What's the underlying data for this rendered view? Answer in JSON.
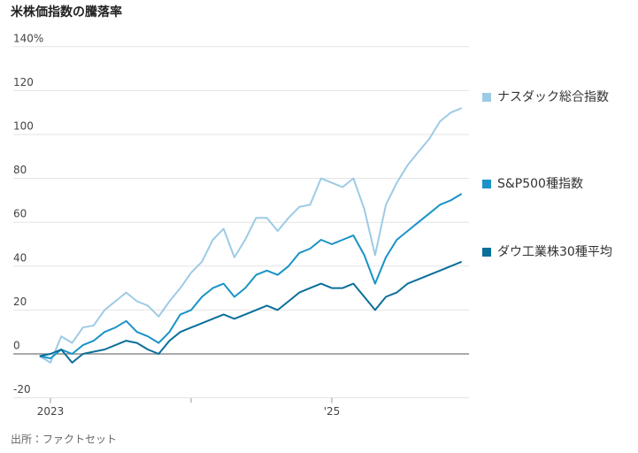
{
  "chart_data": {
    "type": "line",
    "title": "米株価指数の騰落率",
    "source": "出所：ファクトセット",
    "categories": [
      null,
      "2023",
      null,
      null,
      null,
      null,
      null,
      null,
      null,
      null,
      null,
      null,
      null,
      null,
      null,
      null,
      null,
      null,
      null,
      null,
      null,
      null,
      null,
      null,
      null,
      null,
      null,
      "'25",
      null,
      null,
      null,
      null,
      null,
      null,
      null,
      null,
      null,
      null,
      null,
      null
    ],
    "series": [
      {
        "name": "ナスダック総合指数",
        "color": "#9dcbe5",
        "values": [
          -1,
          -4,
          8,
          5,
          12,
          13,
          20,
          24,
          28,
          24,
          22,
          17,
          24,
          30,
          37,
          42,
          52,
          57,
          44,
          52,
          62,
          62,
          56,
          62,
          67,
          68,
          80,
          78,
          76,
          80,
          66,
          45,
          68,
          78,
          86,
          92,
          98,
          106,
          110,
          112
        ]
      },
      {
        "name": "S&P500種指数",
        "color": "#1a93c8",
        "values": [
          -1,
          -2,
          2,
          0,
          4,
          6,
          10,
          12,
          15,
          10,
          8,
          5,
          10,
          18,
          20,
          26,
          30,
          32,
          26,
          30,
          36,
          38,
          36,
          40,
          46,
          48,
          52,
          50,
          52,
          54,
          45,
          32,
          44,
          52,
          56,
          60,
          64,
          68,
          70,
          73
        ]
      },
      {
        "name": "ダウ工業株30種平均",
        "color": "#0b6f9a",
        "values": [
          -1,
          0,
          2,
          -4,
          0,
          1,
          2,
          4,
          6,
          5,
          2,
          0,
          6,
          10,
          12,
          14,
          16,
          18,
          16,
          18,
          20,
          22,
          20,
          24,
          28,
          30,
          32,
          30,
          30,
          32,
          26,
          20,
          26,
          28,
          32,
          34,
          36,
          38,
          40,
          42
        ]
      }
    ],
    "ylim": [
      -20,
      140
    ],
    "yticks": [
      -20,
      0,
      20,
      40,
      60,
      80,
      100,
      120,
      {
        "value": 140,
        "label": "140%"
      }
    ],
    "grid": true
  }
}
